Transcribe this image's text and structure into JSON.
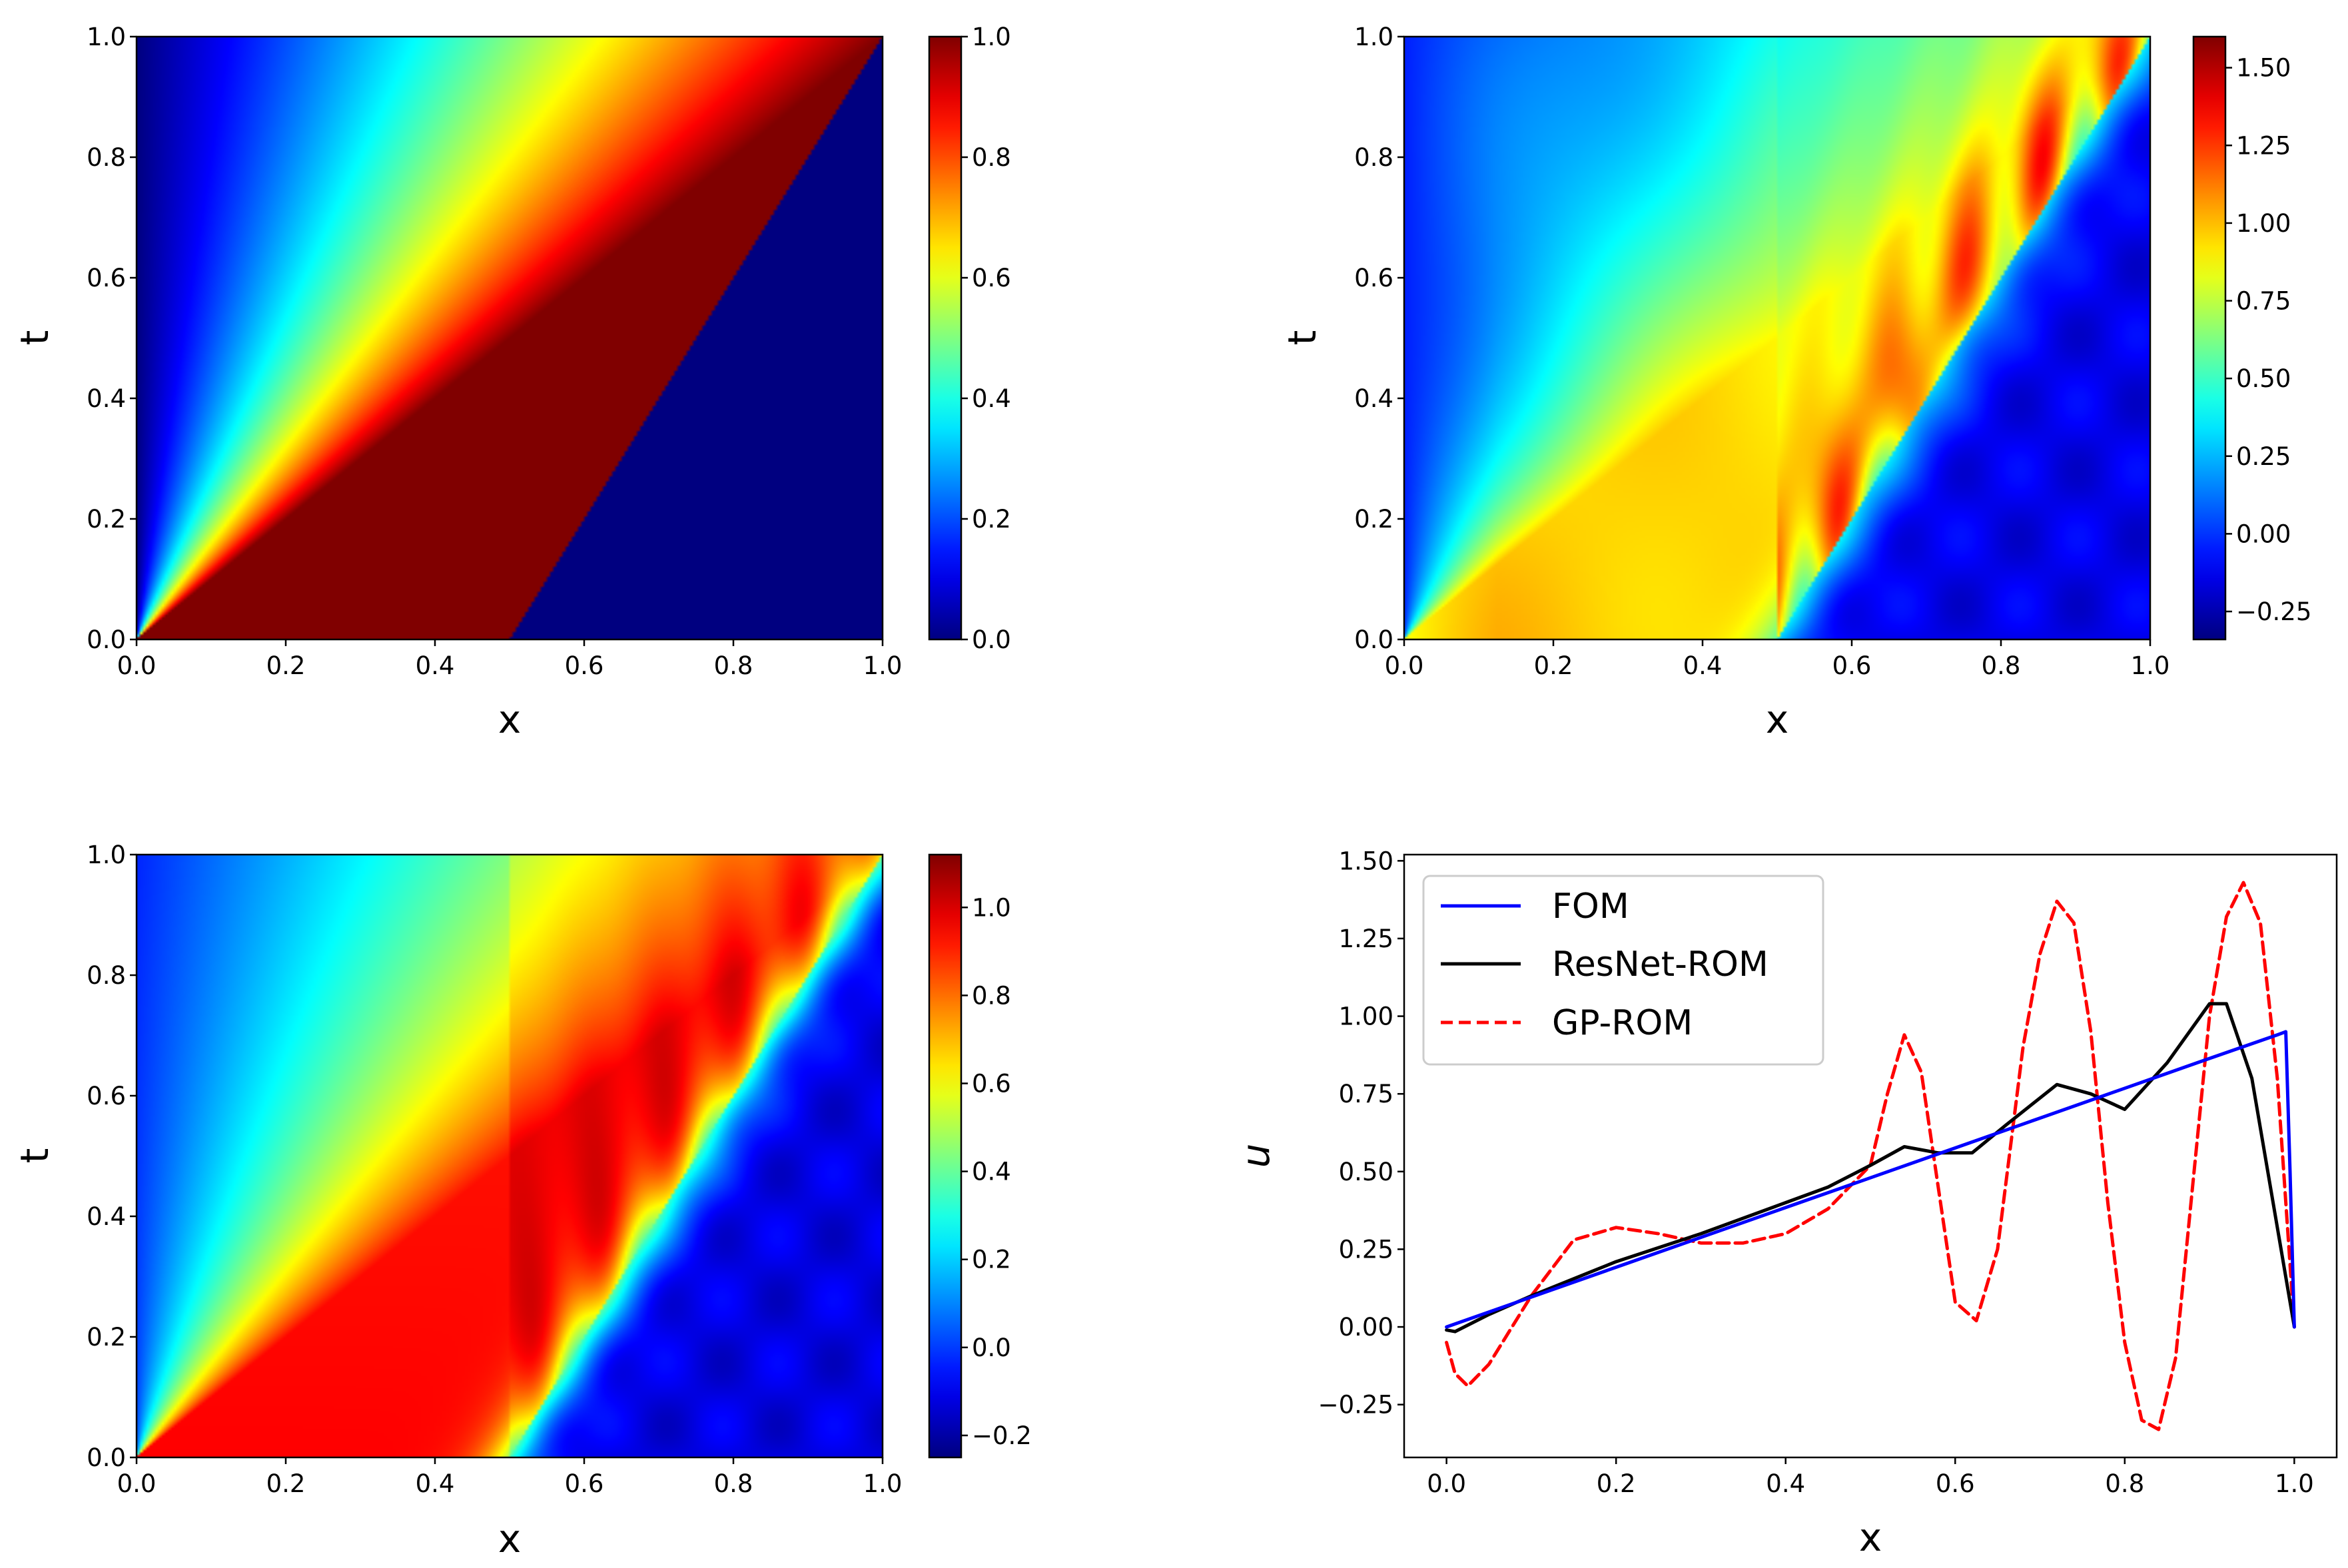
{
  "colormap": "jet",
  "colors": {
    "fom": "#0000ff",
    "resnet": "#000000",
    "gp": "#ff0000",
    "axis": "#000000"
  },
  "chart_data": [
    {
      "type": "heatmap",
      "id": "fom-heatmap",
      "xlabel": "x",
      "ylabel": "t",
      "xlim": [
        0,
        1
      ],
      "ylim": [
        0,
        1
      ],
      "xticks": [
        0.0,
        0.2,
        0.4,
        0.6,
        0.8,
        1.0
      ],
      "xtick_labels": [
        "0.0",
        "0.2",
        "0.4",
        "0.6",
        "0.8",
        "1.0"
      ],
      "yticks": [
        0.0,
        0.2,
        0.4,
        0.6,
        0.8,
        1.0
      ],
      "ytick_labels": [
        "0.0",
        "0.2",
        "0.4",
        "0.6",
        "0.8",
        "1.0"
      ],
      "colorbar": {
        "range": [
          0.0,
          1.0
        ],
        "ticks": [
          0.0,
          0.2,
          0.4,
          0.6,
          0.8,
          1.0
        ],
        "tick_labels": [
          "0.0",
          "0.2",
          "0.4",
          "0.6",
          "0.8",
          "1.0"
        ]
      },
      "field": "rarefaction-shock: u = x/t for x < t, 1 between fan and shock x = 0.5 + t/2, 0 beyond"
    },
    {
      "type": "heatmap",
      "id": "gp-rom-heatmap",
      "xlabel": "x",
      "ylabel": "t",
      "xlim": [
        0,
        1
      ],
      "ylim": [
        0,
        1
      ],
      "xticks": [
        0.0,
        0.2,
        0.4,
        0.6,
        0.8,
        1.0
      ],
      "xtick_labels": [
        "0.0",
        "0.2",
        "0.4",
        "0.6",
        "0.8",
        "1.0"
      ],
      "yticks": [
        0.0,
        0.2,
        0.4,
        0.6,
        0.8,
        1.0
      ],
      "ytick_labels": [
        "0.0",
        "0.2",
        "0.4",
        "0.6",
        "0.8",
        "1.0"
      ],
      "colorbar": {
        "range": [
          -0.34,
          1.6
        ],
        "ticks": [
          -0.25,
          0.0,
          0.25,
          0.5,
          0.75,
          1.0,
          1.25,
          1.5
        ],
        "tick_labels": [
          "−0.25",
          "0.00",
          "0.25",
          "0.50",
          "0.75",
          "1.00",
          "1.25",
          "1.50"
        ]
      },
      "field": "oscillatory approximation of the FOM field with overshoot near the shock"
    },
    {
      "type": "heatmap",
      "id": "resnet-rom-heatmap",
      "xlabel": "x",
      "ylabel": "t",
      "xlim": [
        0,
        1
      ],
      "ylim": [
        0,
        1
      ],
      "xticks": [
        0.0,
        0.2,
        0.4,
        0.6,
        0.8,
        1.0
      ],
      "xtick_labels": [
        "0.0",
        "0.2",
        "0.4",
        "0.6",
        "0.8",
        "1.0"
      ],
      "yticks": [
        0.0,
        0.2,
        0.4,
        0.6,
        0.8,
        1.0
      ],
      "ytick_labels": [
        "0.0",
        "0.2",
        "0.4",
        "0.6",
        "0.8",
        "1.0"
      ],
      "colorbar": {
        "range": [
          -0.25,
          1.12
        ],
        "ticks": [
          -0.2,
          0.0,
          0.2,
          0.4,
          0.6,
          0.8,
          1.0
        ],
        "tick_labels": [
          "−0.2",
          "0.0",
          "0.2",
          "0.4",
          "0.6",
          "0.8",
          "1.0"
        ]
      },
      "field": "smoothed approximation of the FOM field with mild oscillations"
    },
    {
      "type": "line",
      "id": "profile-at-t1",
      "xlabel": "x",
      "ylabel": "u",
      "xlim": [
        -0.05,
        1.05
      ],
      "ylim": [
        -0.42,
        1.52
      ],
      "xticks": [
        0.0,
        0.2,
        0.4,
        0.6,
        0.8,
        1.0
      ],
      "xtick_labels": [
        "0.0",
        "0.2",
        "0.4",
        "0.6",
        "0.8",
        "1.0"
      ],
      "yticks": [
        -0.25,
        0.0,
        0.25,
        0.5,
        0.75,
        1.0,
        1.25,
        1.5
      ],
      "ytick_labels": [
        "−0.25",
        "0.00",
        "0.25",
        "0.50",
        "0.75",
        "1.00",
        "1.25",
        "1.50"
      ],
      "legend_position": "top-left",
      "series": [
        {
          "name": "FOM",
          "style": "solid",
          "x": [
            0.0,
            0.1,
            0.2,
            0.3,
            0.4,
            0.5,
            0.6,
            0.7,
            0.8,
            0.9,
            0.98,
            0.99,
            0.995,
            1.0
          ],
          "y": [
            0.0,
            0.096,
            0.192,
            0.288,
            0.384,
            0.48,
            0.576,
            0.672,
            0.768,
            0.864,
            0.94,
            0.95,
            0.5,
            0.0
          ]
        },
        {
          "name": "ResNet-ROM",
          "style": "solid",
          "x": [
            0.0,
            0.01,
            0.05,
            0.1,
            0.2,
            0.3,
            0.4,
            0.45,
            0.5,
            0.54,
            0.58,
            0.62,
            0.66,
            0.72,
            0.76,
            0.8,
            0.85,
            0.9,
            0.92,
            0.95,
            1.0
          ],
          "y": [
            -0.01,
            -0.015,
            0.04,
            0.1,
            0.21,
            0.3,
            0.4,
            0.45,
            0.52,
            0.58,
            0.56,
            0.56,
            0.65,
            0.78,
            0.75,
            0.7,
            0.85,
            1.04,
            1.04,
            0.8,
            0.0
          ]
        },
        {
          "name": "GP-ROM",
          "style": "dashed",
          "x": [
            0.0,
            0.01,
            0.025,
            0.05,
            0.1,
            0.15,
            0.2,
            0.25,
            0.3,
            0.35,
            0.4,
            0.45,
            0.5,
            0.52,
            0.54,
            0.56,
            0.58,
            0.6,
            0.625,
            0.65,
            0.68,
            0.7,
            0.72,
            0.74,
            0.76,
            0.78,
            0.8,
            0.82,
            0.84,
            0.86,
            0.88,
            0.9,
            0.92,
            0.94,
            0.96,
            0.98,
            1.0
          ],
          "y": [
            -0.05,
            -0.15,
            -0.19,
            -0.12,
            0.1,
            0.28,
            0.32,
            0.3,
            0.27,
            0.27,
            0.3,
            0.38,
            0.52,
            0.75,
            0.94,
            0.82,
            0.45,
            0.08,
            0.02,
            0.25,
            0.9,
            1.2,
            1.37,
            1.3,
            0.95,
            0.4,
            -0.05,
            -0.3,
            -0.33,
            -0.1,
            0.45,
            1.0,
            1.32,
            1.43,
            1.3,
            0.8,
            0.0
          ]
        }
      ]
    }
  ]
}
